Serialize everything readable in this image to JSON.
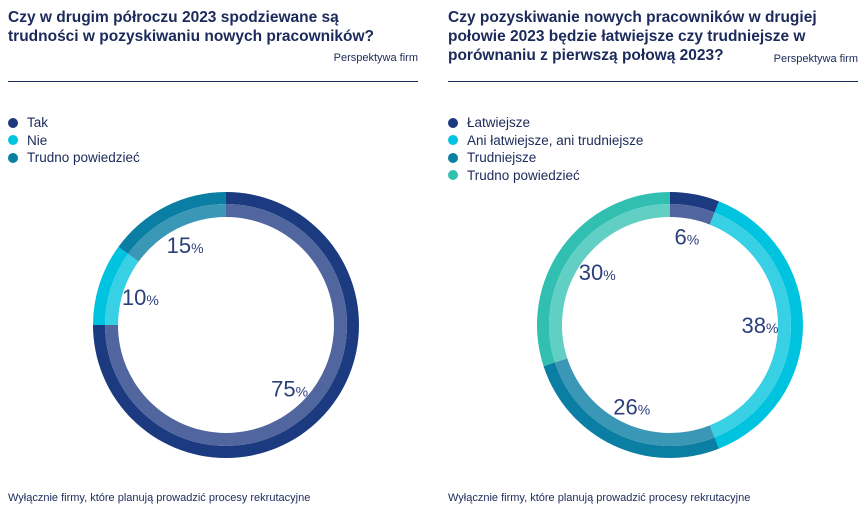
{
  "charts": [
    {
      "title": "Czy w drugim półroczu 2023 spodziewane są trudności w pozyskiwaniu nowych pracowników?",
      "subtitle": "Perspektywa firm",
      "note": "Wyłącznie firmy, które planują prowadzić procesy rekrutacyjne",
      "pct_suffix": "%"
    },
    {
      "title": "Czy pozyskiwanie nowych pracowników w drugiej połowie 2023 będzie łatwiejsze czy trudniejsze w porównaniu z pierwszą połową 2023?",
      "subtitle": "Perspektywa firm",
      "note": "Wyłącznie firmy, które planują prowadzić procesy rekrutacyjne",
      "pct_suffix": "%"
    }
  ],
  "chart_data": [
    {
      "type": "pie",
      "donut": true,
      "categories": [
        "Tak",
        "Nie",
        "Trudno powiedzieć"
      ],
      "values": [
        75,
        10,
        15
      ],
      "colors": [
        "#1b3a80",
        "#00c3df",
        "#0a7fa3"
      ],
      "inner_colors": [
        "#51669e",
        "#38d0e5",
        "#3a97b5"
      ],
      "legend_position": "top-left"
    },
    {
      "type": "pie",
      "donut": true,
      "categories": [
        "Łatwiejsze",
        "Ani łatwiejsze, ani trudniejsze",
        "Trudniejsze",
        "Trudno powiedzieć"
      ],
      "values": [
        6,
        38,
        26,
        30
      ],
      "colors": [
        "#1b3a80",
        "#00c3df",
        "#0a7fa3",
        "#31bfb1"
      ],
      "inner_colors": [
        "#51669e",
        "#38d0e5",
        "#3a97b5",
        "#62cfc4"
      ],
      "legend_position": "top-left"
    }
  ]
}
